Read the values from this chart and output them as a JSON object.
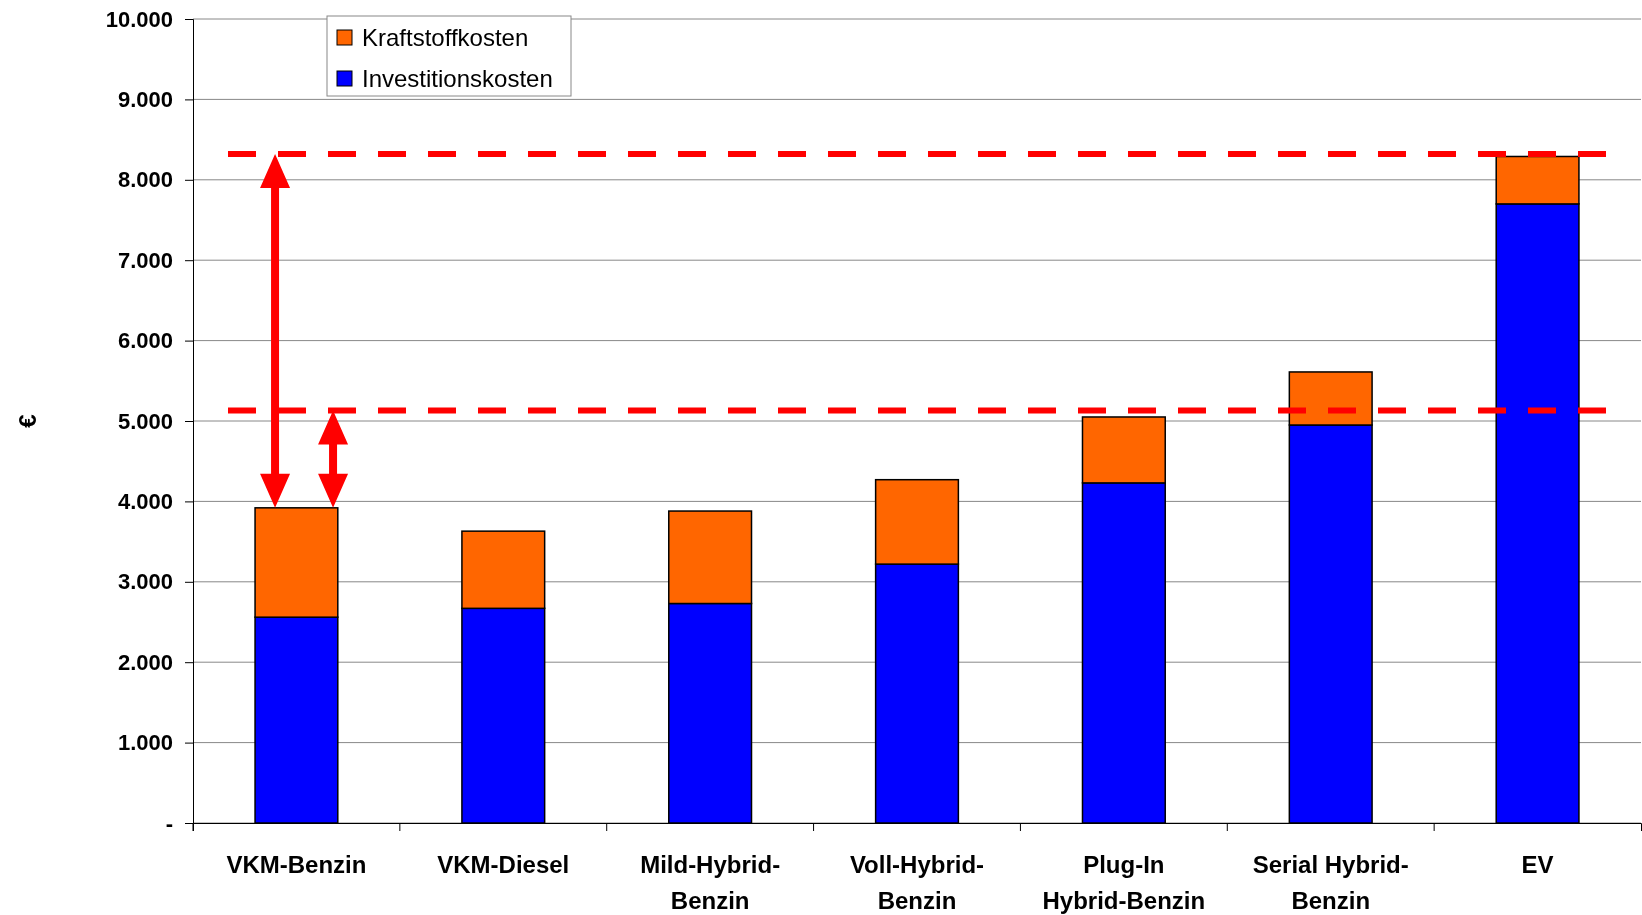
{
  "chart_data": {
    "type": "bar",
    "ylabel": "€",
    "stacked": true,
    "grid": "y",
    "legend": "top left",
    "categories": [
      "VKM-Benzin",
      "VKM-Diesel",
      "Mild-Hybrid-\nBenzin",
      "Voll-Hybrid-\nBenzin",
      "Plug-In\nHybrid-Benzin",
      "Serial Hybrid-\nBenzin",
      "EV"
    ],
    "series": [
      {
        "name": "Investitionskosten",
        "color": "#0000ff",
        "values": [
          2560,
          2670,
          2730,
          3220,
          4230,
          4950,
          7700
        ]
      },
      {
        "name": "Kraftstoffkosten",
        "color": "#ff6600",
        "values": [
          1360,
          960,
          1150,
          1050,
          820,
          660,
          590
        ]
      }
    ],
    "ylim": [
      0,
      10000
    ],
    "yticks": [
      {
        "value": 0,
        "label": "-"
      },
      {
        "value": 1000,
        "label": "1.000"
      },
      {
        "value": 2000,
        "label": "2.000"
      },
      {
        "value": 3000,
        "label": "3.000"
      },
      {
        "value": 4000,
        "label": "4.000"
      },
      {
        "value": 5000,
        "label": "5.000"
      },
      {
        "value": 6000,
        "label": "6.000"
      },
      {
        "value": 7000,
        "label": "7.000"
      },
      {
        "value": 8000,
        "label": "8.000"
      },
      {
        "value": 9000,
        "label": "9.000"
      },
      {
        "value": 10000,
        "label": "10.000"
      }
    ],
    "ref_lines": [
      {
        "axis": "y",
        "value": 8320,
        "color": "#ff0000",
        "line_style": "dashed"
      },
      {
        "axis": "y",
        "value": 5130,
        "color": "#ff0000",
        "line_style": "dashed"
      }
    ]
  }
}
